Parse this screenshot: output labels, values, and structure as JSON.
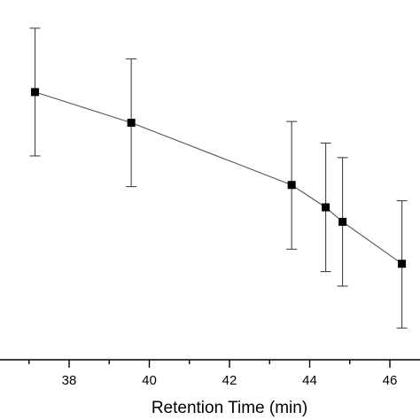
{
  "chart_data": {
    "type": "scatter",
    "title": "",
    "xlabel": "Retention Time (min)",
    "ylabel": "",
    "xlim": [
      35.8,
      46.6
    ],
    "ylim": [
      0,
      1
    ],
    "xticks": [
      38,
      40,
      42,
      44,
      46
    ],
    "grid": false,
    "legend": "none",
    "series": [
      {
        "connected": true,
        "marker": "square",
        "color": "#000000",
        "line_color": "#555555",
        "points": [
          {
            "x": 37.15,
            "y": 0.778,
            "err_lo": 0.154,
            "err_hi": 0.154
          },
          {
            "x": 39.55,
            "y": 0.704,
            "err_lo": 0.154,
            "err_hi": 0.154
          },
          {
            "x": 43.55,
            "y": 0.554,
            "err_lo": 0.155,
            "err_hi": 0.153
          },
          {
            "x": 44.4,
            "y": 0.5,
            "err_lo": 0.155,
            "err_hi": 0.155
          },
          {
            "x": 44.82,
            "y": 0.465,
            "err_lo": 0.155,
            "err_hi": 0.155
          },
          {
            "x": 46.3,
            "y": 0.364,
            "err_lo": 0.155,
            "err_hi": 0.152
          }
        ]
      }
    ]
  }
}
